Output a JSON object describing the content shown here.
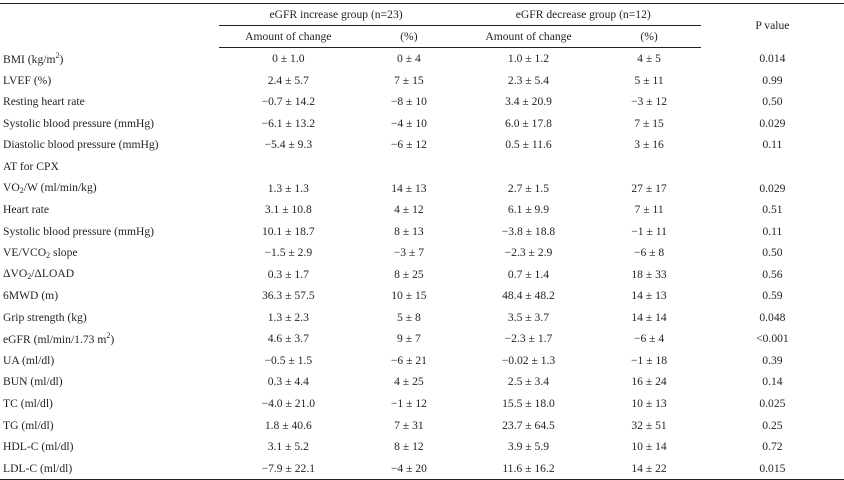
{
  "header": {
    "group_increase": "eGFR increase group (n=23)",
    "group_decrease": "eGFR decrease group (n=12)",
    "p_value": "P value",
    "amount_of_change": "Amount of change",
    "percent": "(%)"
  },
  "rows": [
    {
      "pre": "BMI (kg/m",
      "sup": "2",
      "post": ")",
      "inc_amount": "0 ± 1.0",
      "inc_pct": "0 ± 4",
      "dec_amount": "1.0 ± 1.2",
      "dec_pct": "4 ± 5",
      "p": "0.014"
    },
    {
      "pre": "LVEF (%)",
      "inc_amount": "2.4 ± 5.7",
      "inc_pct": "7 ± 15",
      "dec_amount": "2.3 ± 5.4",
      "dec_pct": "5 ± 11",
      "p": "0.99"
    },
    {
      "pre": "Resting heart rate",
      "inc_amount": "−0.7 ± 14.2",
      "inc_pct": "−8 ± 10",
      "dec_amount": "3.4 ± 20.9",
      "dec_pct": "−3 ± 12",
      "p": "0.50"
    },
    {
      "pre": "Systolic blood pressure (mmHg)",
      "inc_amount": "−6.1 ± 13.2",
      "inc_pct": "−4 ± 10",
      "dec_amount": "6.0 ± 17.8",
      "dec_pct": "7 ± 15",
      "p": "0.029"
    },
    {
      "pre": "Diastolic blood pressure (mmHg)",
      "inc_amount": "−5.4 ± 9.3",
      "inc_pct": "−6 ± 12",
      "dec_amount": "0.5 ± 11.6",
      "dec_pct": "3 ± 16",
      "p": "0.11"
    },
    {
      "pre": "AT for CPX",
      "inc_amount": "",
      "inc_pct": "",
      "dec_amount": "",
      "dec_pct": "",
      "p": ""
    },
    {
      "pre": "VO",
      "sub": "2",
      "post": "/W (ml/min/kg)",
      "inc_amount": "1.3 ± 1.3",
      "inc_pct": "14 ± 13",
      "dec_amount": "2.7 ± 1.5",
      "dec_pct": "27 ± 17",
      "p": "0.029"
    },
    {
      "pre": "Heart rate",
      "inc_amount": "3.1 ± 10.8",
      "inc_pct": "4 ± 12",
      "dec_amount": "6.1 ± 9.9",
      "dec_pct": "7 ± 11",
      "p": "0.51"
    },
    {
      "pre": "Systolic blood pressure (mmHg)",
      "inc_amount": "10.1 ± 18.7",
      "inc_pct": "8 ± 13",
      "dec_amount": "−3.8 ± 18.8",
      "dec_pct": "−1 ± 11",
      "p": "0.11"
    },
    {
      "pre": "VE/VCO",
      "sub": "2",
      "post": " slope",
      "inc_amount": "−1.5 ± 2.9",
      "inc_pct": "−3 ± 7",
      "dec_amount": "−2.3 ± 2.9",
      "dec_pct": "−6 ± 8",
      "p": "0.50"
    },
    {
      "pre": "ΔVO",
      "sub": "2",
      "post": "/ΔLOAD",
      "inc_amount": "0.3 ± 1.7",
      "inc_pct": "8 ± 25",
      "dec_amount": "0.7 ± 1.4",
      "dec_pct": "18 ± 33",
      "p": "0.56"
    },
    {
      "pre": "6MWD (m)",
      "inc_amount": "36.3 ± 57.5",
      "inc_pct": "10 ± 15",
      "dec_amount": "48.4 ± 48.2",
      "dec_pct": "14 ± 13",
      "p": "0.59"
    },
    {
      "pre": "Grip strength (kg)",
      "inc_amount": "1.3 ± 2.3",
      "inc_pct": "5 ± 8",
      "dec_amount": "3.5 ± 3.7",
      "dec_pct": "14 ± 14",
      "p": "0.048"
    },
    {
      "pre": "eGFR (ml/min/1.73 m",
      "sup": "2",
      "post": ")",
      "inc_amount": "4.6 ± 3.7",
      "inc_pct": "9 ± 7",
      "dec_amount": "−2.3 ± 1.7",
      "dec_pct": "−6 ± 4",
      "p": "<0.001"
    },
    {
      "pre": "UA (ml/dl)",
      "inc_amount": "−0.5 ± 1.5",
      "inc_pct": "−6 ± 21",
      "dec_amount": "−0.02 ± 1.3",
      "dec_pct": "−1 ± 18",
      "p": "0.39"
    },
    {
      "pre": "BUN (ml/dl)",
      "inc_amount": "0.3 ± 4.4",
      "inc_pct": "4 ± 25",
      "dec_amount": "2.5 ± 3.4",
      "dec_pct": "16 ± 24",
      "p": "0.14"
    },
    {
      "pre": "TC (ml/dl)",
      "inc_amount": "−4.0 ± 21.0",
      "inc_pct": "−1 ± 12",
      "dec_amount": "15.5 ± 18.0",
      "dec_pct": "10 ± 13",
      "p": "0.025"
    },
    {
      "pre": "TG (ml/dl)",
      "inc_amount": "1.8 ± 40.6",
      "inc_pct": "7 ± 31",
      "dec_amount": "23.7 ± 64.5",
      "dec_pct": "32 ± 51",
      "p": "0.25"
    },
    {
      "pre": "HDL-C (ml/dl)",
      "inc_amount": "3.1 ± 5.2",
      "inc_pct": "8 ± 12",
      "dec_amount": "3.9 ± 5.9",
      "dec_pct": "10 ± 14",
      "p": "0.72"
    },
    {
      "pre": "LDL-C (ml/dl)",
      "inc_amount": "−7.9 ± 22.1",
      "inc_pct": "−4 ± 20",
      "dec_amount": "11.6 ± 16.2",
      "dec_pct": "14 ± 22",
      "p": "0.015"
    }
  ]
}
